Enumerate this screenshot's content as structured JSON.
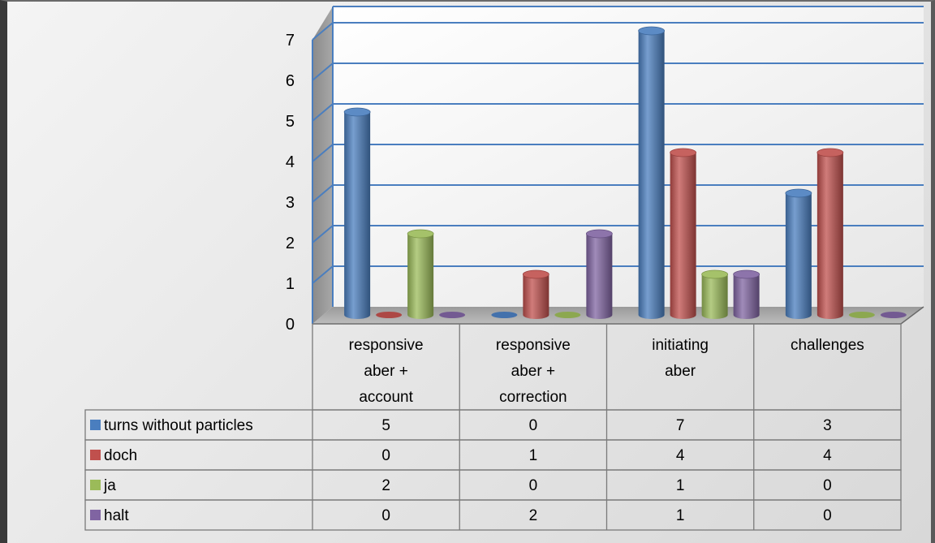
{
  "chart_data": {
    "type": "bar",
    "categories": [
      [
        "responsive",
        "aber +",
        "account"
      ],
      [
        "responsive",
        "aber +",
        "correction"
      ],
      [
        "initiating",
        "aber"
      ],
      [
        "challenges"
      ]
    ],
    "series": [
      {
        "name": "turns without particles",
        "color": "#4a7ebf",
        "values": [
          5,
          0,
          7,
          3
        ]
      },
      {
        "name": "doch",
        "color": "#c0504d",
        "values": [
          0,
          1,
          4,
          4
        ]
      },
      {
        "name": "ja",
        "color": "#9bbb59",
        "values": [
          2,
          0,
          1,
          0
        ]
      },
      {
        "name": "halt",
        "color": "#8064a2",
        "values": [
          0,
          2,
          1,
          0
        ]
      }
    ],
    "y_ticks": [
      "0",
      "1",
      "2",
      "3",
      "4",
      "5",
      "6",
      "7"
    ],
    "ylim": [
      0,
      7
    ],
    "grid": true,
    "legend": "data-table"
  }
}
